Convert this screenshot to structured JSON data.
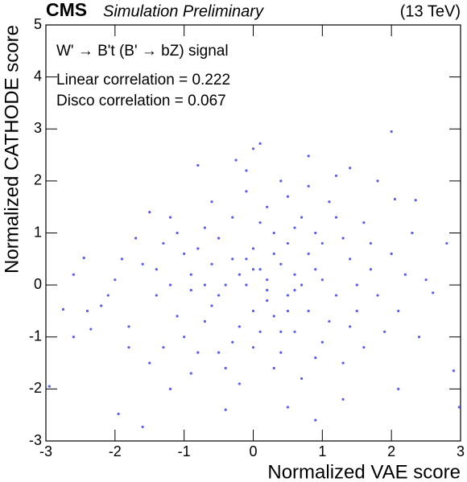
{
  "chart_data": {
    "type": "scatter",
    "experiment": "CMS",
    "subtitle": "Simulation Preliminary",
    "energy": "(13 TeV)",
    "annotations": [
      "W' → B't (B' → bZ) signal",
      "Linear correlation = 0.222",
      "Disco correlation = 0.067"
    ],
    "xlabel": "Normalized VAE score",
    "ylabel": "Normalized CATHODE score",
    "color": "#5c5cf0",
    "xlim": [
      -3,
      3
    ],
    "xticks": [
      -3,
      -2,
      -1,
      0,
      1,
      2,
      3
    ],
    "ylim": [
      -3,
      5
    ],
    "yticks": [
      -3,
      -2,
      -1,
      0,
      1,
      2,
      3,
      4,
      5
    ],
    "x": [
      2.0,
      0.1,
      0.0,
      -0.8,
      0.8,
      1.4,
      -0.25,
      -0.1,
      2.05,
      2.35,
      2.6,
      2.9,
      2.98,
      -2.95,
      -2.75,
      -2.6,
      -2.45,
      -1.95,
      -1.6,
      0.9,
      0.5,
      -0.4,
      2.1,
      1.3,
      -1.2,
      2.4,
      2.8,
      2.3,
      1.8,
      1.2,
      0.4,
      -1.5,
      -1.2,
      -2.0,
      -2.2,
      -2.35,
      -1.8,
      0.1,
      -0.3,
      0.5,
      -0.6,
      0.3,
      -0.9,
      0.8,
      -0.2,
      0.6,
      -1.1,
      1.0,
      0.2,
      -0.5,
      0.4,
      -0.1,
      1.3,
      -1.4,
      0.7,
      -0.7,
      0.0,
      1.5,
      -1.6,
      0.9,
      -0.8,
      0.2,
      1.1,
      -0.4,
      1.7,
      -1.3,
      0.5,
      -0.2,
      0.3,
      -1.0,
      1.2,
      0.6,
      -0.6,
      0.1,
      0.9,
      -0.3,
      1.4,
      -1.8,
      0.0,
      2.0,
      -2.1,
      0.8,
      -0.9,
      0.4,
      1.6,
      -1.2,
      0.2,
      -0.5,
      1.9,
      -0.1,
      0.7,
      -1.5,
      1.0,
      0.3,
      -0.7,
      2.2,
      -1.7,
      0.5,
      1.3,
      -0.3,
      0.1,
      -1.0,
      1.8,
      0.6,
      -0.4,
      0.9,
      -0.8,
      1.2,
      -1.3,
      0.0,
      0.4,
      -0.2,
      1.5,
      2.1,
      -2.4,
      -1.9,
      0.8,
      -0.6,
      1.1,
      -1.1,
      0.3,
      1.6,
      -0.9,
      2.5,
      -2.6,
      0.7,
      -0.1,
      0.2,
      1.0,
      -0.5,
      1.4,
      -1.4,
      0.5,
      0.6,
      -0.7,
      0.0,
      1.7
    ],
    "values": [
      2.95,
      2.72,
      2.62,
      2.3,
      2.48,
      2.25,
      2.4,
      2.2,
      1.65,
      1.63,
      -0.15,
      -1.65,
      -2.35,
      -1.95,
      -0.47,
      0.2,
      0.52,
      -2.48,
      -2.73,
      -2.6,
      -2.35,
      -2.4,
      -2.0,
      -2.2,
      -2.0,
      -1.0,
      0.8,
      1.0,
      2.0,
      2.1,
      2.0,
      1.4,
      1.3,
      0.1,
      -0.4,
      -0.85,
      -1.2,
      0.3,
      0.5,
      -0.2,
      -0.4,
      1.0,
      0.2,
      0.6,
      -0.8,
      -0.9,
      -0.6,
      0.1,
      -0.3,
      0.9,
      0.4,
      0.0,
      0.9,
      -0.2,
      1.3,
      1.1,
      -1.2,
      -0.5,
      0.4,
      -1.4,
      -1.3,
      1.5,
      1.6,
      -1.6,
      0.3,
      0.8,
      0.8,
      0.2,
      -0.6,
      -1.0,
      -0.2,
      0.2,
      0.4,
      -0.9,
      1.0,
      1.3,
      0.5,
      -0.8,
      0.7,
      0.6,
      -0.2,
      -0.5,
      -0.1,
      -1.3,
      1.2,
      0.0,
      0.1,
      -0.2,
      -0.9,
      1.8,
      -1.8,
      -1.5,
      -1.1,
      0.6,
      -0.7,
      0.2,
      0.9,
      1.7,
      -1.5,
      -1.1,
      1.2,
      0.6,
      -0.2,
      -0.1,
      0.0,
      0.3,
      0.7,
      1.3,
      -1.2,
      -0.5,
      -0.9,
      -1.9,
      0.0,
      -0.5,
      -0.5,
      0.5,
      1.9,
      1.6,
      -0.7,
      1.0,
      -1.6,
      -1.2,
      -1.7,
      0.1,
      -1.0,
      0.0,
      0.5,
      -0.1,
      0.8,
      -1.3,
      -0.8,
      0.3,
      -0.5,
      1.1,
      0.0,
      0.3,
      0.8
    ]
  }
}
